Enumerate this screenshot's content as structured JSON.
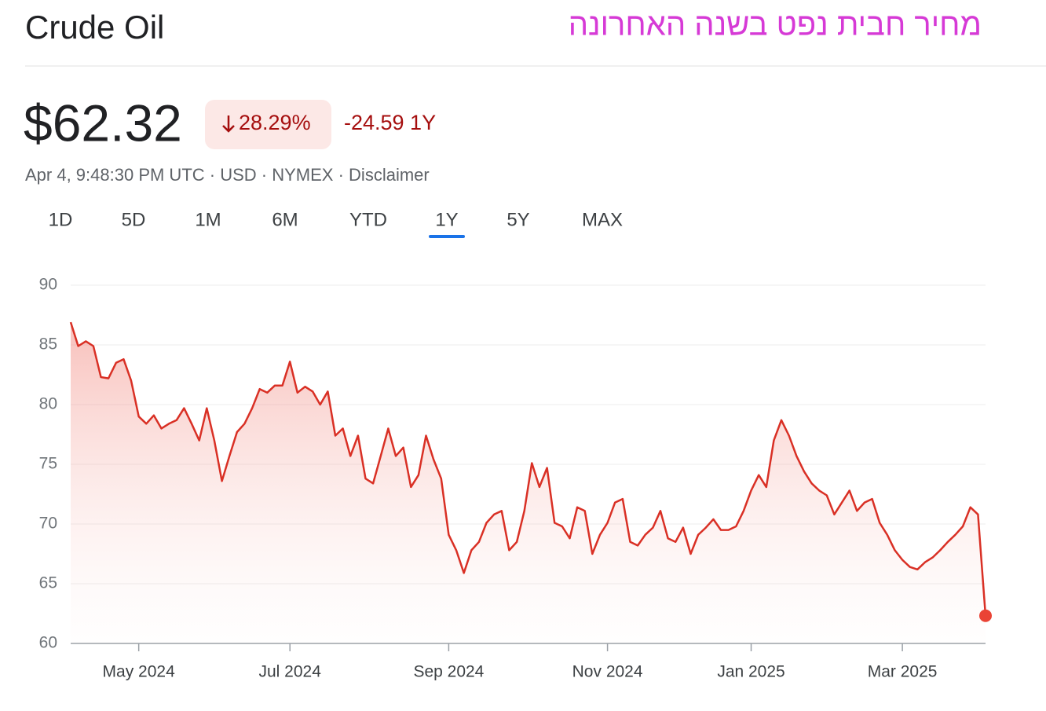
{
  "header": {
    "title": "Crude Oil",
    "caption": "מחיר חבית נפט בשנה האחרונה"
  },
  "quote": {
    "price": "$62.32",
    "change_percent": "28.29%",
    "change": "-24.59 1Y",
    "meta": [
      "Apr 4, 9:48:30 PM UTC",
      "USD",
      "NYMEX",
      "Disclaimer"
    ]
  },
  "tabs": [
    "1D",
    "5D",
    "1M",
    "6M",
    "YTD",
    "1Y",
    "5Y",
    "MAX"
  ],
  "active_tab": 5,
  "chart_data": {
    "type": "line",
    "color": "#d93025",
    "grid": true,
    "categories": [
      null,
      null,
      null,
      null,
      null,
      null,
      null,
      null,
      null,
      "May 2024",
      null,
      null,
      null,
      null,
      null,
      null,
      null,
      null,
      null,
      null,
      null,
      null,
      null,
      null,
      null,
      null,
      null,
      null,
      null,
      "Jul 2024",
      null,
      null,
      null,
      null,
      null,
      null,
      null,
      null,
      null,
      null,
      null,
      null,
      null,
      null,
      null,
      null,
      null,
      null,
      null,
      null,
      "Sep 2024",
      null,
      null,
      null,
      null,
      null,
      null,
      null,
      null,
      null,
      null,
      null,
      null,
      null,
      null,
      null,
      null,
      null,
      null,
      null,
      null,
      "Nov 2024",
      null,
      null,
      null,
      null,
      null,
      null,
      null,
      null,
      null,
      null,
      null,
      null,
      null,
      null,
      null,
      null,
      null,
      null,
      "Jan 2025",
      null,
      null,
      null,
      null,
      null,
      null,
      null,
      null,
      null,
      null,
      null,
      null,
      null,
      null,
      null,
      null,
      null,
      null,
      null,
      "Mar 2025",
      null,
      null,
      null,
      null,
      null,
      null,
      null,
      null,
      null,
      null,
      null
    ],
    "values": [
      86.9,
      84.9,
      85.3,
      84.9,
      82.3,
      82.2,
      83.5,
      83.8,
      82,
      79,
      78.4,
      79.1,
      78,
      78.4,
      78.7,
      79.7,
      78.4,
      77,
      79.7,
      77,
      73.6,
      75.7,
      77.7,
      78.4,
      79.7,
      81.3,
      81,
      81.6,
      81.6,
      83.6,
      81,
      81.5,
      81.1,
      80,
      81.1,
      77.4,
      78,
      75.7,
      77.4,
      73.8,
      73.4,
      75.7,
      78,
      75.7,
      76.4,
      73.1,
      74.1,
      77.4,
      75.4,
      73.8,
      69.1,
      67.8,
      65.9,
      67.8,
      68.5,
      70.1,
      70.8,
      71.1,
      67.8,
      68.5,
      71.1,
      75.1,
      73.1,
      74.7,
      70.1,
      69.8,
      68.8,
      71.4,
      71.1,
      67.5,
      69.1,
      70.1,
      71.8,
      72.1,
      68.5,
      68.2,
      69.1,
      69.7,
      71.1,
      68.8,
      68.5,
      69.7,
      67.5,
      69.1,
      69.7,
      70.4,
      69.5,
      69.5,
      69.8,
      71.1,
      72.8,
      74.1,
      73.1,
      77,
      78.7,
      77.4,
      75.7,
      74.4,
      73.4,
      72.8,
      72.4,
      70.8,
      71.8,
      72.8,
      71.1,
      71.8,
      72.1,
      70.1,
      69.1,
      67.8,
      67,
      66.4,
      66.2,
      66.8,
      67.2,
      67.8,
      68.5,
      69.1,
      69.8,
      71.4,
      70.8,
      62.32
    ],
    "ylim": [
      60,
      90
    ],
    "yticks": [
      60,
      65,
      70,
      75,
      80,
      85,
      90
    ]
  }
}
